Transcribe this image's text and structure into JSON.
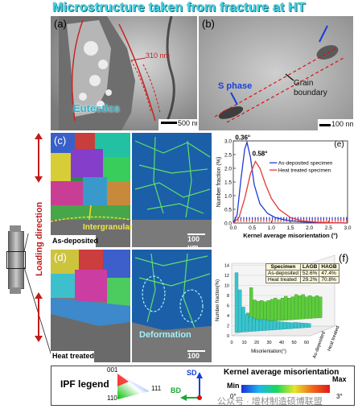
{
  "title": "Microstructure taken from fracture at HT",
  "panel_a": {
    "label": "(a)",
    "dimension": "310 nm",
    "region": "Eutectics",
    "scale": "500 nm"
  },
  "panel_b": {
    "label": "(b)",
    "s_phase": "S phase",
    "grain_boundary": "Grain\nboundary",
    "scale": "100 nm"
  },
  "panel_c": {
    "label": "(c)",
    "annotation": "Intergranular",
    "condition": "As-deposited",
    "scale": "100 μm"
  },
  "panel_d": {
    "label": "(d)",
    "annotation": "Deformation",
    "condition": "Heat treated",
    "scale": "100 μm"
  },
  "loading_direction": "Loading direction",
  "panel_e": {
    "label": "(e)",
    "peak1": "0.36°",
    "peak2": "0.58°",
    "legend": [
      "As-deposited specimen",
      "Heat treated specimen"
    ],
    "colors": [
      "#1f3bd6",
      "#e23a3a"
    ]
  },
  "chart_data": [
    {
      "type": "line",
      "xlabel": "Kernel average misorientation (°)",
      "ylabel": "Number fraction (%)",
      "xlim": [
        0.0,
        3.0
      ],
      "ylim": [
        0.0,
        3.0
      ],
      "xticks": [
        "0.0",
        "0.5",
        "1.0",
        "1.5",
        "2.0",
        "2.5",
        "3.0"
      ],
      "yticks": [
        "0.0",
        "0.5",
        "1.0",
        "1.5",
        "2.0",
        "2.5",
        "3.0"
      ],
      "series": [
        {
          "name": "As-deposited specimen",
          "x": [
            0.0,
            0.1,
            0.2,
            0.3,
            0.36,
            0.45,
            0.55,
            0.7,
            0.9,
            1.1,
            1.4,
            1.8,
            2.2,
            2.6,
            3.0
          ],
          "y": [
            0.0,
            0.3,
            1.6,
            2.7,
            2.95,
            2.4,
            1.4,
            0.7,
            0.35,
            0.2,
            0.1,
            0.04,
            0.02,
            0.01,
            0.0
          ]
        },
        {
          "name": "Heat treated specimen",
          "x": [
            0.0,
            0.15,
            0.3,
            0.45,
            0.58,
            0.7,
            0.85,
            1.0,
            1.2,
            1.5,
            1.8,
            2.2,
            2.6,
            3.0
          ],
          "y": [
            0.0,
            0.2,
            0.9,
            1.8,
            2.25,
            2.0,
            1.4,
            0.9,
            0.5,
            0.2,
            0.08,
            0.03,
            0.01,
            0.0
          ]
        }
      ]
    },
    {
      "type": "table",
      "headers": [
        "Specimen",
        "LAGB",
        "HAGB"
      ],
      "rows": [
        [
          "As-deposited",
          "52.6%",
          "47.4%"
        ],
        [
          "Heat treated",
          "29.2%",
          "70.8%"
        ]
      ]
    },
    {
      "type": "bar",
      "ylabel": "Number fraction(%)",
      "xlabel": "Misorientation(°)",
      "zticks": [
        "0",
        "2",
        "4",
        "6",
        "8",
        "10",
        "12",
        "14"
      ],
      "xticks": [
        "0",
        "10",
        "20",
        "30",
        "40",
        "50",
        "60"
      ],
      "series_labels": [
        "As-deposited",
        "Heat treated"
      ]
    }
  ],
  "panel_f": {
    "label": "(f)"
  },
  "legend_bar": {
    "ipf": "IPF legend",
    "ipf_corners": [
      "001",
      "111",
      "110"
    ],
    "sd": "SD",
    "bd": "BD",
    "kam_title": "Kernel average misorientation",
    "min_label": "Min",
    "min_value": "0°",
    "max_label": "Max",
    "max_value": "3°",
    "watermark": "公众号 · 增材制造硕博联盟"
  }
}
